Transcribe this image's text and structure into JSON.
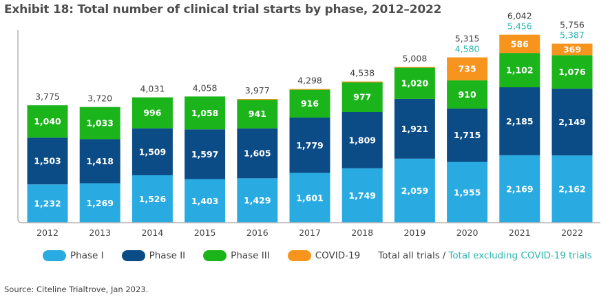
{
  "chart_data": {
    "type": "bar",
    "stacked": true,
    "title": "Exhibit 18: Total number of clinical trial starts by phase, 2012–2022",
    "categories": [
      "2012",
      "2013",
      "2014",
      "2015",
      "2016",
      "2017",
      "2018",
      "2019",
      "2020",
      "2021",
      "2022"
    ],
    "series": [
      {
        "name": "Phase I",
        "color": "#29abe2",
        "values": [
          1232,
          1269,
          1526,
          1403,
          1429,
          1601,
          1749,
          2059,
          1955,
          2169,
          2162
        ]
      },
      {
        "name": "Phase II",
        "color": "#0b4c86",
        "values": [
          1503,
          1418,
          1509,
          1597,
          1605,
          1779,
          1809,
          1921,
          1715,
          2185,
          2149
        ]
      },
      {
        "name": "Phase III",
        "color": "#1bb51b",
        "values": [
          1040,
          1033,
          996,
          1058,
          941,
          916,
          977,
          1020,
          910,
          1102,
          1076
        ]
      },
      {
        "name": "COVID-19",
        "color": "#f7941d",
        "values": [
          0,
          0,
          0,
          0,
          2,
          2,
          3,
          8,
          735,
          586,
          369
        ]
      }
    ],
    "totals": [
      "3,775",
      "3,720",
      "4,031",
      "4,058",
      "3,977",
      "4,298",
      "4,538",
      "5,008",
      "5,315",
      "6,042",
      "5,756"
    ],
    "totals_excluding_covid": [
      "",
      "",
      "",
      "",
      "",
      "",
      "",
      "",
      "4,580",
      "5,456",
      "5,387"
    ],
    "covid_labels": [
      "",
      "",
      "",
      "",
      "",
      "",
      "",
      "",
      "735",
      "586",
      "369"
    ],
    "ylim": [
      0,
      6300
    ],
    "grid": false,
    "legend_placement": "bottom"
  },
  "legend": {
    "items": [
      {
        "label": "Phase I",
        "color": "#29abe2"
      },
      {
        "label": "Phase II",
        "color": "#0b4c86"
      },
      {
        "label": "Phase III",
        "color": "#1bb51b"
      },
      {
        "label": "COVID-19",
        "color": "#f7941d"
      }
    ],
    "total_label": "Total all trials",
    "separator": "/",
    "total_excl_label": "Total excluding COVID-19 trials"
  },
  "source": "Source: Citeline Trialtrove, Jan 2023."
}
